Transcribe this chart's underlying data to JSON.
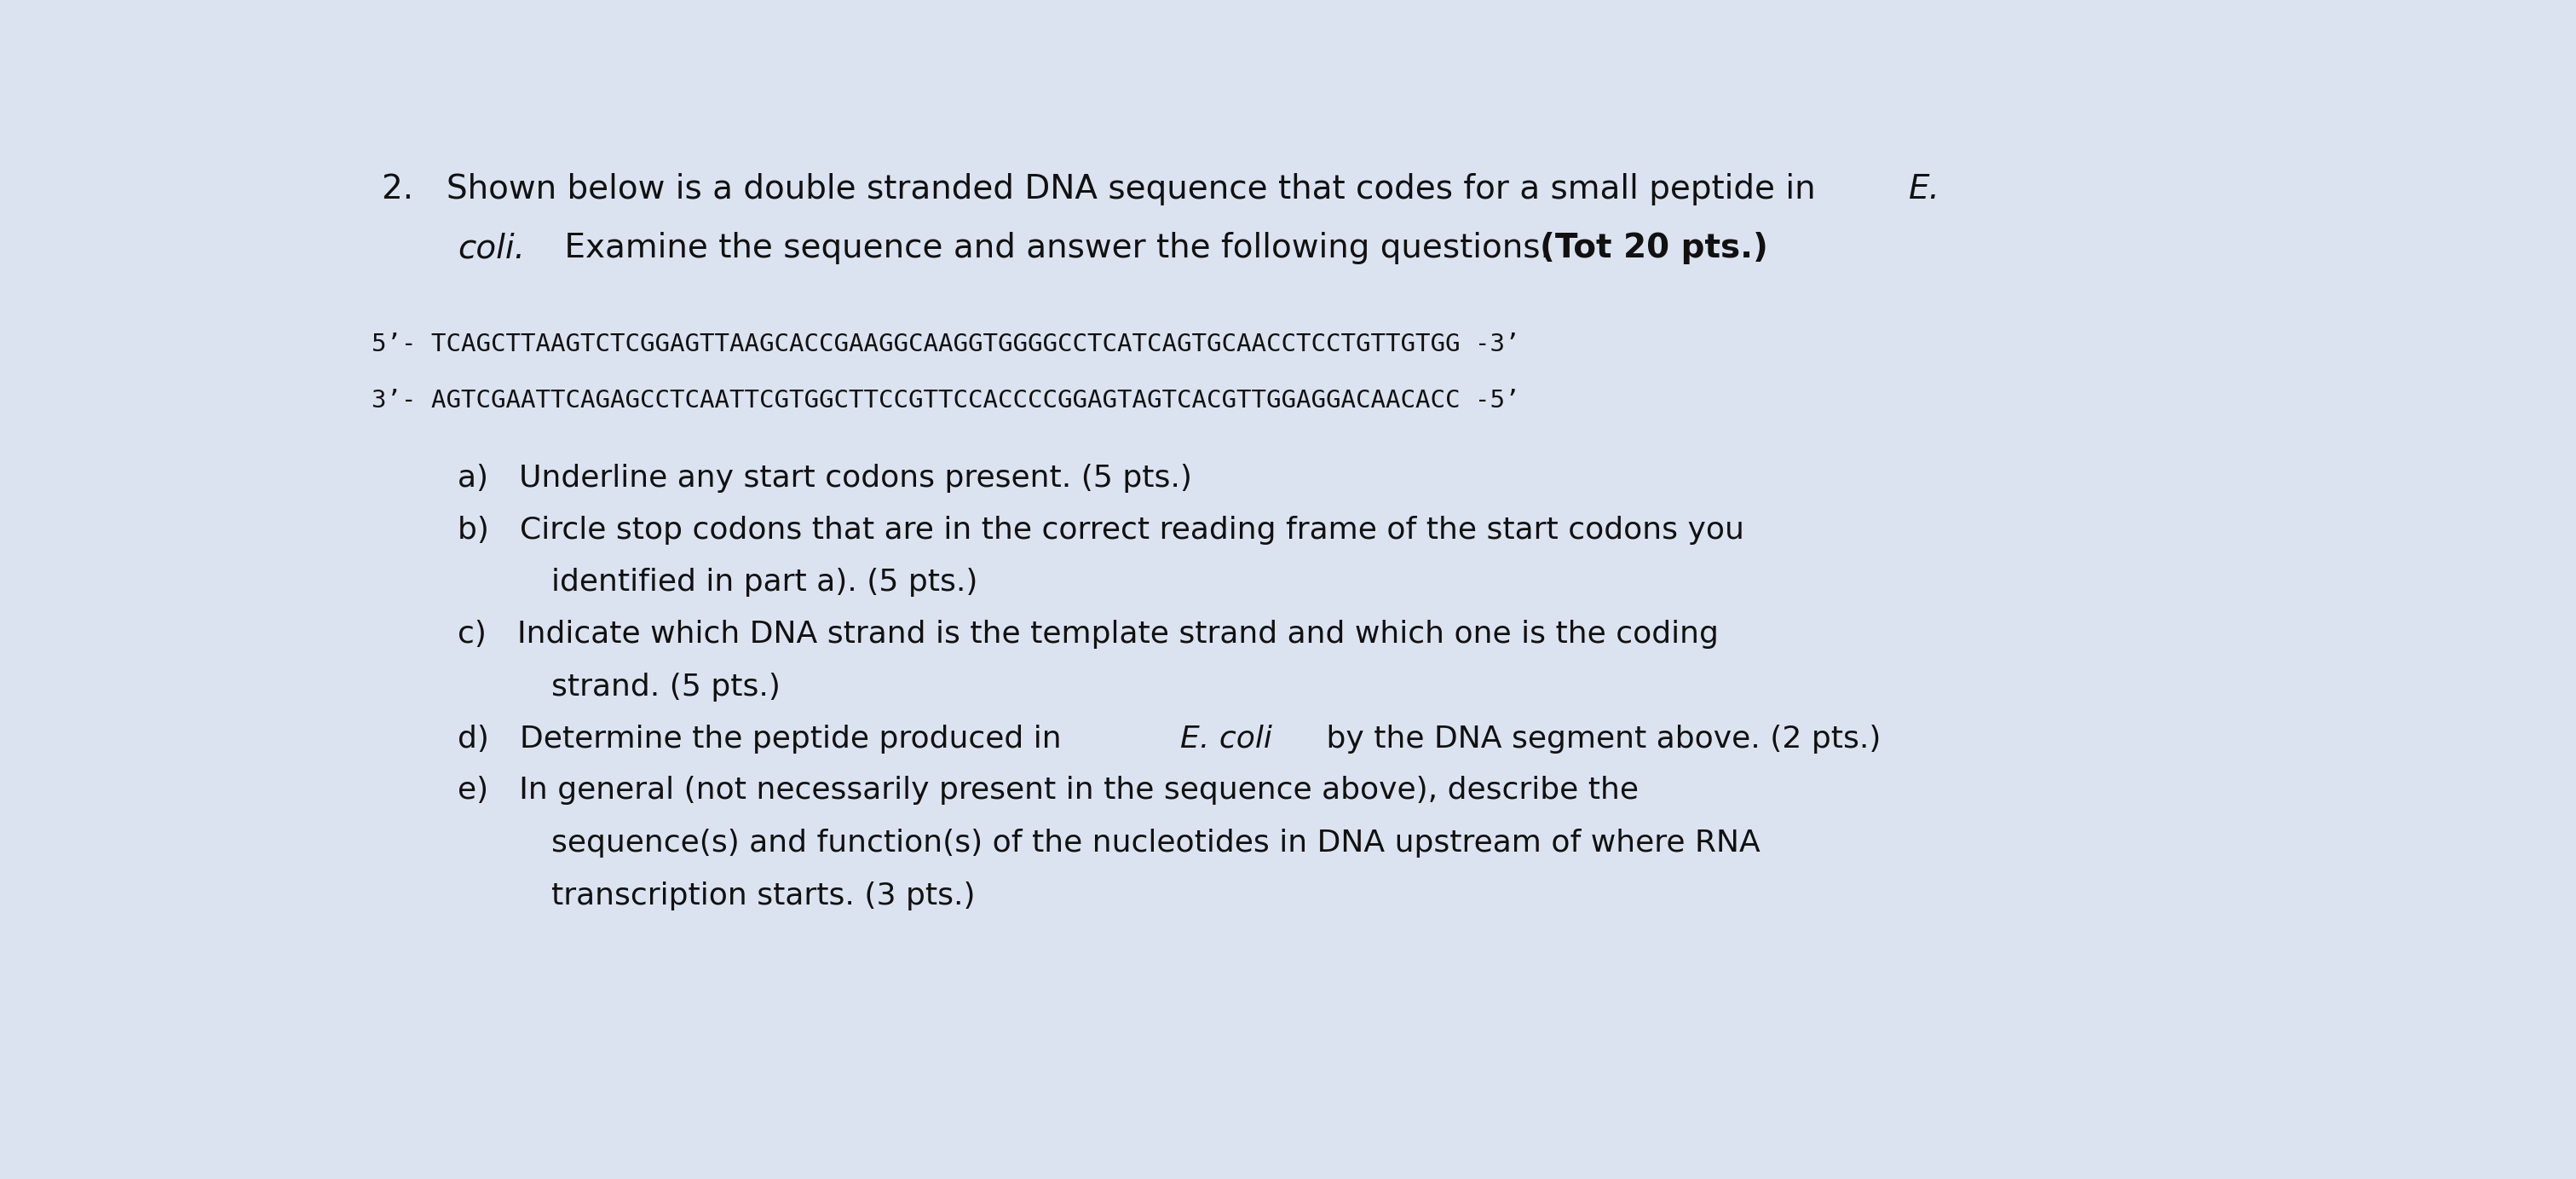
{
  "bg_color": "#dce3f0",
  "text_color": "#111111",
  "font_size_title": 28,
  "font_size_seq": 21,
  "font_size_q": 26,
  "line1_normal": "2. Shown below is a double stranded DNA sequence that codes for a small peptide in ",
  "line1_italic": "E.",
  "line2_italic": "coli.",
  "line2_normal": " Examine the sequence and answer the following questions. ",
  "line2_bold": "(Tot 20 pts.)",
  "seq_line1": "5’- TCAGCTTAAGTCTCGGAGTTAAGCACCGAAGGCAAGGTGGGGCCTCATCAGTGCAACCTCCTGTTGTGG -3’",
  "seq_line2": "3’- AGTCGAATTCAGAGCCTCAATTCGTGGCTTCCGTTCCACCCCGGAGTAGTCACGTTGGAGGACAACACC -5’"
}
